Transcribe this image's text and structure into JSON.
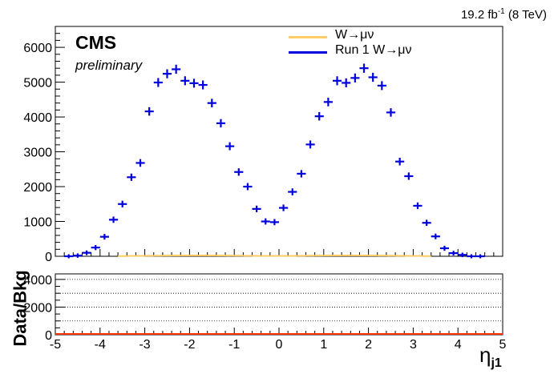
{
  "header": {
    "lumi": "19.2 fb",
    "lumi_sup": "-1",
    "energy": "(8 TeV)"
  },
  "labels": {
    "experiment": "CMS",
    "status": "preliminary",
    "ratio_ylabel": "Data/Bkg",
    "xlabel_symbol": "η",
    "xlabel_sub": "j1"
  },
  "legend": [
    {
      "label": "W→μν",
      "color": "#ffcc66"
    },
    {
      "label": "Run 1 W→μν",
      "color": "#0000dd"
    }
  ],
  "chart_data": [
    {
      "type": "scatter",
      "panel": "main",
      "xlabel": "",
      "ylabel": "",
      "xlim": [
        -5,
        5
      ],
      "ylim": [
        0,
        6600
      ],
      "yticks": [
        0,
        1000,
        2000,
        3000,
        4000,
        5000,
        6000
      ],
      "xticks": [
        -5,
        -4,
        -3,
        -2,
        -1,
        0,
        1,
        2,
        3,
        4,
        5
      ],
      "bin_width": 0.2,
      "series": [
        {
          "name": "Run 1 W→μν",
          "color": "#0000dd",
          "x": [
            -4.7,
            -4.5,
            -4.3,
            -4.1,
            -3.9,
            -3.7,
            -3.5,
            -3.3,
            -3.1,
            -2.9,
            -2.7,
            -2.5,
            -2.3,
            -2.1,
            -1.9,
            -1.7,
            -1.5,
            -1.3,
            -1.1,
            -0.9,
            -0.7,
            -0.5,
            -0.3,
            -0.1,
            0.1,
            0.3,
            0.5,
            0.7,
            0.9,
            1.1,
            1.3,
            1.5,
            1.7,
            1.9,
            2.1,
            2.3,
            2.5,
            2.7,
            2.9,
            3.1,
            3.3,
            3.5,
            3.7,
            3.9,
            4.1,
            4.3,
            4.5
          ],
          "y": [
            0,
            20,
            100,
            250,
            560,
            1050,
            1500,
            2270,
            2680,
            4160,
            4990,
            5240,
            5370,
            5040,
            4970,
            4920,
            4400,
            3820,
            3160,
            2420,
            2000,
            1360,
            1000,
            980,
            1390,
            1850,
            2370,
            3210,
            4020,
            4430,
            5040,
            4980,
            5120,
            5400,
            5140,
            4900,
            4130,
            2720,
            2300,
            1450,
            960,
            570,
            230,
            90,
            40,
            0,
            0
          ]
        },
        {
          "name": "W→μν",
          "color": "#ffcc66",
          "x": [
            -4.7,
            -4.5,
            -4.3,
            -4.1,
            -3.9,
            -3.7,
            -3.5,
            -3.3,
            -3.1,
            -2.9,
            -2.7,
            -2.5,
            -2.3,
            -2.1,
            -1.9,
            -1.7,
            -1.5,
            -1.3,
            -1.1,
            -0.9,
            -0.7,
            -0.5,
            -0.3,
            -0.1,
            0.1,
            0.3,
            0.5,
            0.7,
            0.9,
            1.1,
            1.3,
            1.5,
            1.7,
            1.9,
            2.1,
            2.3,
            2.5,
            2.7,
            2.9,
            3.1,
            3.3,
            3.5,
            3.7,
            3.9,
            4.1,
            4.3,
            4.5
          ],
          "y": [
            0,
            0,
            0,
            0,
            0,
            0,
            5,
            10,
            12,
            15,
            18,
            20,
            22,
            24,
            25,
            25,
            24,
            22,
            20,
            18,
            15,
            12,
            10,
            10,
            10,
            12,
            15,
            18,
            20,
            22,
            24,
            25,
            25,
            24,
            22,
            20,
            18,
            15,
            12,
            10,
            5,
            0,
            0,
            0,
            0,
            0,
            0
          ]
        }
      ]
    },
    {
      "type": "scatter",
      "panel": "ratio",
      "xlabel": "η_j1",
      "ylabel": "Data/Bkg",
      "xlim": [
        -5,
        5
      ],
      "ylim": [
        0,
        4400
      ],
      "yticks": [
        0,
        2000,
        4000
      ],
      "yticks_grid": [
        1000,
        2000,
        3000,
        4000
      ],
      "xticks": [
        -5,
        -4,
        -3,
        -2,
        -1,
        0,
        1,
        2,
        3,
        4,
        5
      ],
      "grid": "horizontal dotted",
      "series": [
        {
          "name": "Data/Bkg",
          "color": "#ff3300",
          "y_constant": 0
        }
      ]
    }
  ]
}
